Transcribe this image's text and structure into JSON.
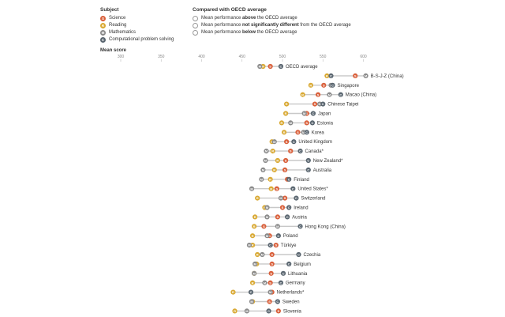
{
  "legend": {
    "subject_title": "Subject",
    "subjects": [
      {
        "key": "S",
        "name": "Science",
        "color": "#d9603b"
      },
      {
        "key": "R",
        "name": "Reading",
        "color": "#d9a933"
      },
      {
        "key": "M",
        "name": "Mathematics",
        "color": "#8a8a8a"
      },
      {
        "key": "C",
        "name": "Computational problem solving",
        "color": "#5a6670"
      }
    ],
    "compare_title": "Compared with OECD average",
    "compare": [
      {
        "pre": "Mean performance ",
        "bold": "above",
        "post": " the OECD average"
      },
      {
        "pre": "Mean performance ",
        "bold": "not significantly different",
        "post": " from the OECD average"
      },
      {
        "pre": "Mean performance ",
        "bold": "below",
        "post": " the OECD average"
      }
    ]
  },
  "chart_data": {
    "type": "scatter",
    "xlabel": "Mean score",
    "xticks": [
      300,
      350,
      400,
      450,
      500,
      550,
      600
    ],
    "xlim": [
      300,
      600
    ],
    "series_keys": [
      "S",
      "R",
      "M",
      "C"
    ],
    "countries": [
      {
        "name": "OECD average",
        "S": 485,
        "R": 476,
        "M": 472,
        "C": 498
      },
      {
        "name": "B-S-J-Z (China)",
        "S": 590,
        "R": 555,
        "M": 603,
        "C": 560
      },
      {
        "name": "Singapore",
        "S": 551,
        "R": 535,
        "M": 560,
        "C": 562
      },
      {
        "name": "Macao (China)",
        "S": 544,
        "R": 525,
        "M": 558,
        "C": 572
      },
      {
        "name": "Chinese Taipei",
        "S": 540,
        "R": 505,
        "M": 546,
        "C": 550
      },
      {
        "name": "Japan",
        "S": 530,
        "R": 504,
        "M": 527,
        "C": 538
      },
      {
        "name": "Estonia",
        "S": 530,
        "R": 499,
        "M": 510,
        "C": 537
      },
      {
        "name": "Korea",
        "S": 519,
        "R": 502,
        "M": 526,
        "C": 530
      },
      {
        "name": "United Kingdom",
        "S": 505,
        "R": 487,
        "M": 490,
        "C": 514
      },
      {
        "name": "Canada*",
        "S": 510,
        "R": 488,
        "M": 480,
        "C": 522
      },
      {
        "name": "New Zealand*",
        "S": 504,
        "R": 494,
        "M": 479,
        "C": 532
      },
      {
        "name": "Australia",
        "S": 503,
        "R": 490,
        "M": 476,
        "C": 532
      },
      {
        "name": "Finland",
        "S": 506,
        "R": 485,
        "M": 474,
        "C": 508
      },
      {
        "name": "United States*",
        "S": 493,
        "R": 486,
        "M": 462,
        "C": 513
      },
      {
        "name": "Switzerland",
        "S": 503,
        "R": 469,
        "M": 498,
        "C": 517
      },
      {
        "name": "Ireland",
        "S": 500,
        "R": 478,
        "M": 481,
        "C": 508
      },
      {
        "name": "Austria",
        "S": 494,
        "R": 466,
        "M": 481,
        "C": 506
      },
      {
        "name": "Hong Kong (China)",
        "S": 477,
        "R": 465,
        "M": 494,
        "C": 522
      },
      {
        "name": "Poland",
        "S": 484,
        "R": 463,
        "M": 481,
        "C": 495
      },
      {
        "name": "Türkiye",
        "S": 492,
        "R": 463,
        "M": 459,
        "C": 485
      },
      {
        "name": "Czechia",
        "S": 487,
        "R": 469,
        "M": 475,
        "C": 520
      },
      {
        "name": "Belgium",
        "S": 487,
        "R": 468,
        "M": 466,
        "C": 508
      },
      {
        "name": "Lithuania",
        "S": 486,
        "R": 465,
        "M": 465,
        "C": 501
      },
      {
        "name": "Germany",
        "S": 485,
        "R": 463,
        "M": 478,
        "C": 498
      },
      {
        "name": "Netherlands*",
        "S": 487,
        "R": 439,
        "M": 485,
        "C": 461
      },
      {
        "name": "Sweden",
        "S": 484,
        "R": 463,
        "M": 462,
        "C": 494
      },
      {
        "name": "Slovenia",
        "S": 495,
        "R": 441,
        "M": 456,
        "C": 483
      }
    ]
  }
}
